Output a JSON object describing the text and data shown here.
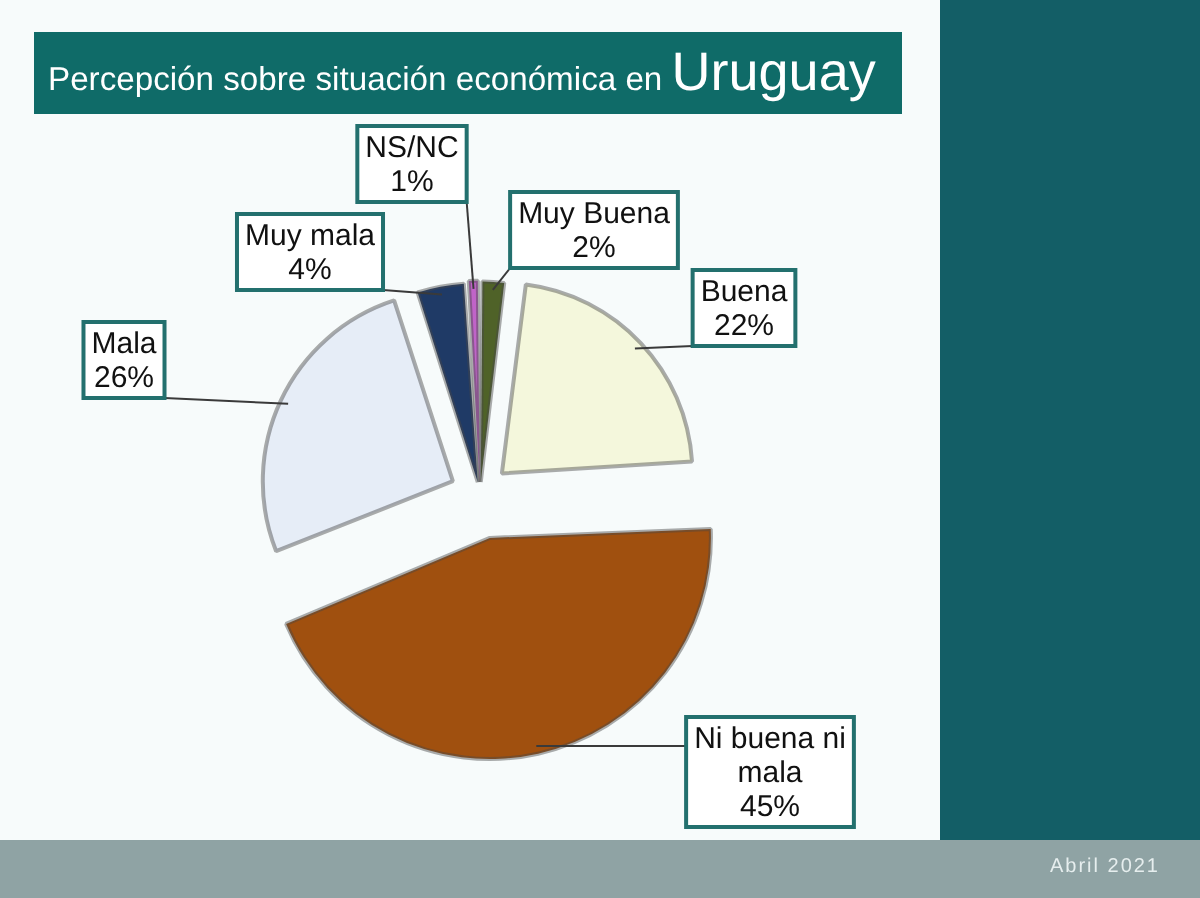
{
  "chart_data": {
    "type": "pie",
    "title": "Percepción sobre situación económica en Uruguay",
    "categories": [
      "Muy Buena",
      "Buena",
      "Ni buena ni mala",
      "Mala",
      "Muy mala",
      "NS/NC"
    ],
    "values": [
      2,
      22,
      45,
      26,
      4,
      1
    ],
    "colors": [
      "#4f6228",
      "#f4f7dc",
      "#a0500f",
      "#e6edf7",
      "#1f3a66",
      "#c064c8"
    ],
    "value_labels": [
      "2%",
      "22%",
      "45%",
      "26%",
      "4%",
      "1%"
    ],
    "annotations": [
      "Abril 2021"
    ]
  }
}
